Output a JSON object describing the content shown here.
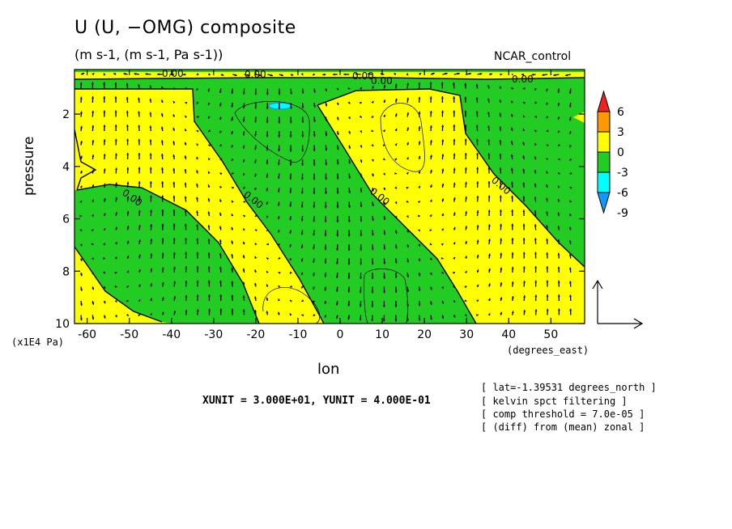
{
  "header": {
    "title": "U (U, −OMG) composite",
    "subtitle": "(m s-1, (m s-1, Pa s-1))",
    "run_label": "NCAR_control"
  },
  "footer": {
    "unit_line": "XUNIT = 3.000E+01, YUNIT = 4.000E-01",
    "notes": [
      "[ lat=-1.39531 degrees_north ]",
      "[ kelvin spct filtering ]",
      "[ comp threshold = 7.0e-05 ]",
      "[ (diff) from (mean) zonal ]"
    ]
  },
  "colors": {
    "red": "#ee2222",
    "orange": "#ff9900",
    "yellow": "#ffff00",
    "green": "#22cc22",
    "cyan": "#00ffff",
    "blue": "#1199ff"
  },
  "chart_data": {
    "type": "contour",
    "xlabel": "lon",
    "xunit": "(degrees_east)",
    "ylabel": "pressure",
    "ypower": "(x1E4 Pa)",
    "xlim": [
      -63,
      58
    ],
    "ylim": [
      10,
      0.3
    ],
    "xticks": [
      -60,
      -50,
      -40,
      -30,
      -20,
      -10,
      0,
      10,
      20,
      30,
      40,
      50
    ],
    "yticks": [
      2,
      4,
      6,
      8,
      10
    ],
    "contour_label": "0.00",
    "colorbar": {
      "levels": [
        "6",
        "3",
        "0",
        "-3",
        "-6",
        "-9"
      ],
      "colors": [
        "#ee2222",
        "#ff9900",
        "#ffff00",
        "#22cc22",
        "#00ffff",
        "#1199ff"
      ]
    },
    "vector_units": {
      "xunit": 30.0,
      "yunit": 0.4
    }
  }
}
